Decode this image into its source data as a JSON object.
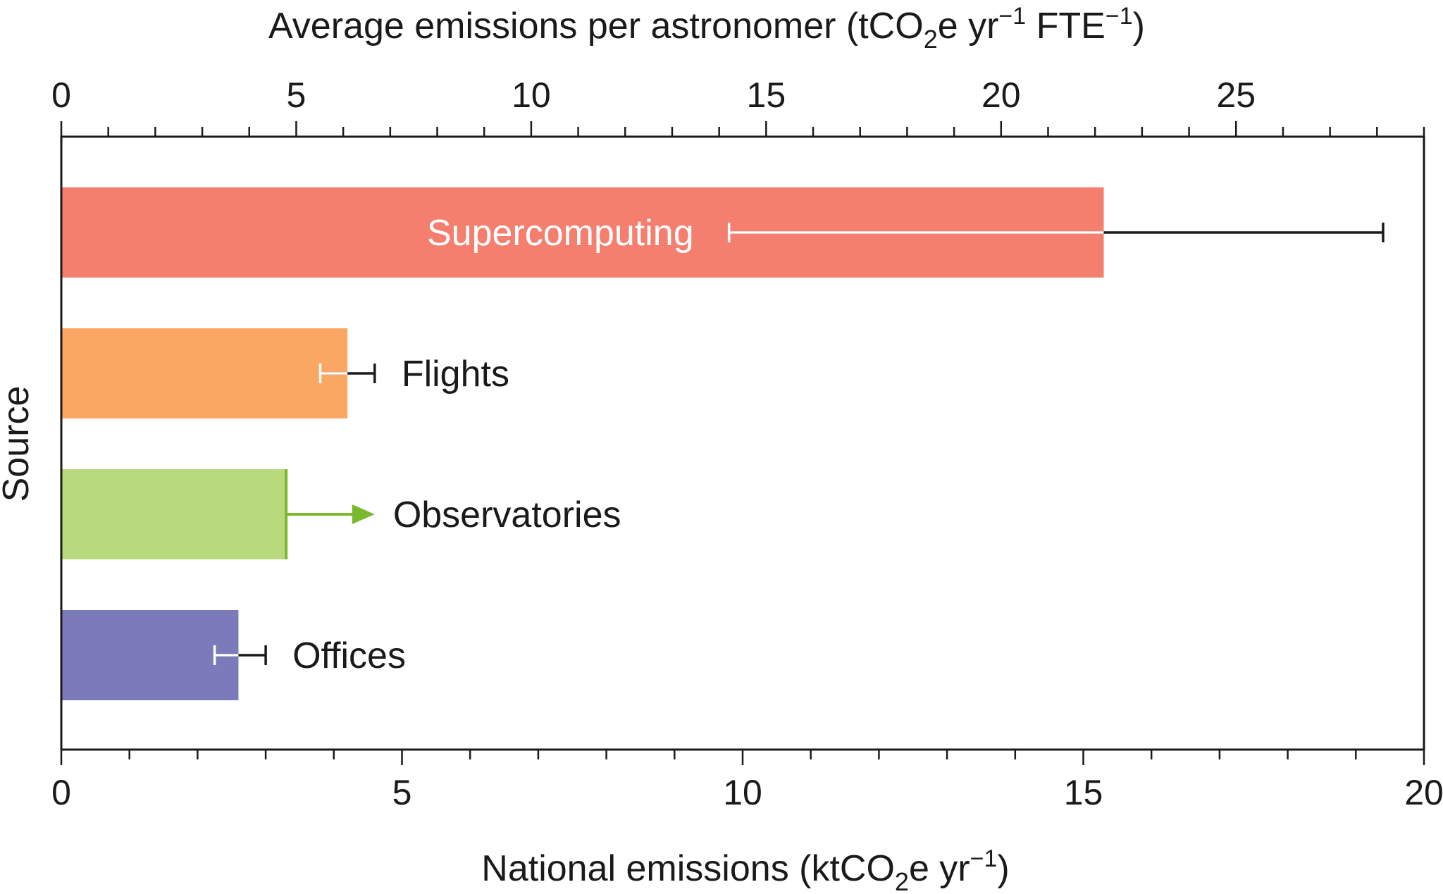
{
  "chart_data": {
    "type": "bar",
    "orientation": "horizontal",
    "top_axis": {
      "title_parts": [
        "Average emissions per astronomer (tCO",
        "2",
        "e yr",
        "−1",
        " FTE",
        "−1",
        ")"
      ],
      "range": [
        0,
        29
      ],
      "ticks": [
        0,
        5,
        10,
        15,
        20,
        25
      ],
      "tick_labels": [
        "0",
        "5",
        "10",
        "15",
        "20",
        "25"
      ],
      "minor_step": 1
    },
    "bottom_axis": {
      "title_parts": [
        "National emissions (ktCO",
        "2",
        "e yr",
        "−1",
        ")"
      ],
      "range": [
        0,
        20
      ],
      "ticks": [
        0,
        5,
        10,
        15,
        20
      ],
      "tick_labels": [
        "0",
        "5",
        "10",
        "15",
        "20"
      ],
      "minor_step": 1
    },
    "ylabel": "Source",
    "categories": [
      "Supercomputing",
      "Flights",
      "Observatories",
      "Offices"
    ],
    "bars": [
      {
        "label": "Supercomputing",
        "value": 15.3,
        "err_low": 9.8,
        "err_high": 19.4,
        "color": "#f47f6e",
        "label_inside": true,
        "lower_limit": false
      },
      {
        "label": "Flights",
        "value": 4.2,
        "err_low": 3.8,
        "err_high": 4.6,
        "color": "#fba764",
        "label_inside": false,
        "lower_limit": false
      },
      {
        "label": "Observatories",
        "value": 3.3,
        "err_low": null,
        "err_high": 4.6,
        "color": "#b8d97c",
        "label_inside": false,
        "lower_limit": true
      },
      {
        "label": "Offices",
        "value": 2.6,
        "err_low": 2.25,
        "err_high": 3.0,
        "color": "#7b7bbb",
        "label_inside": false,
        "lower_limit": false
      }
    ],
    "colors": {
      "axis": "#1a1a1a",
      "arrow": "#7ab82e",
      "error_bar_inside": "#ffffff",
      "error_bar_outside": "#1a1a1a"
    }
  }
}
